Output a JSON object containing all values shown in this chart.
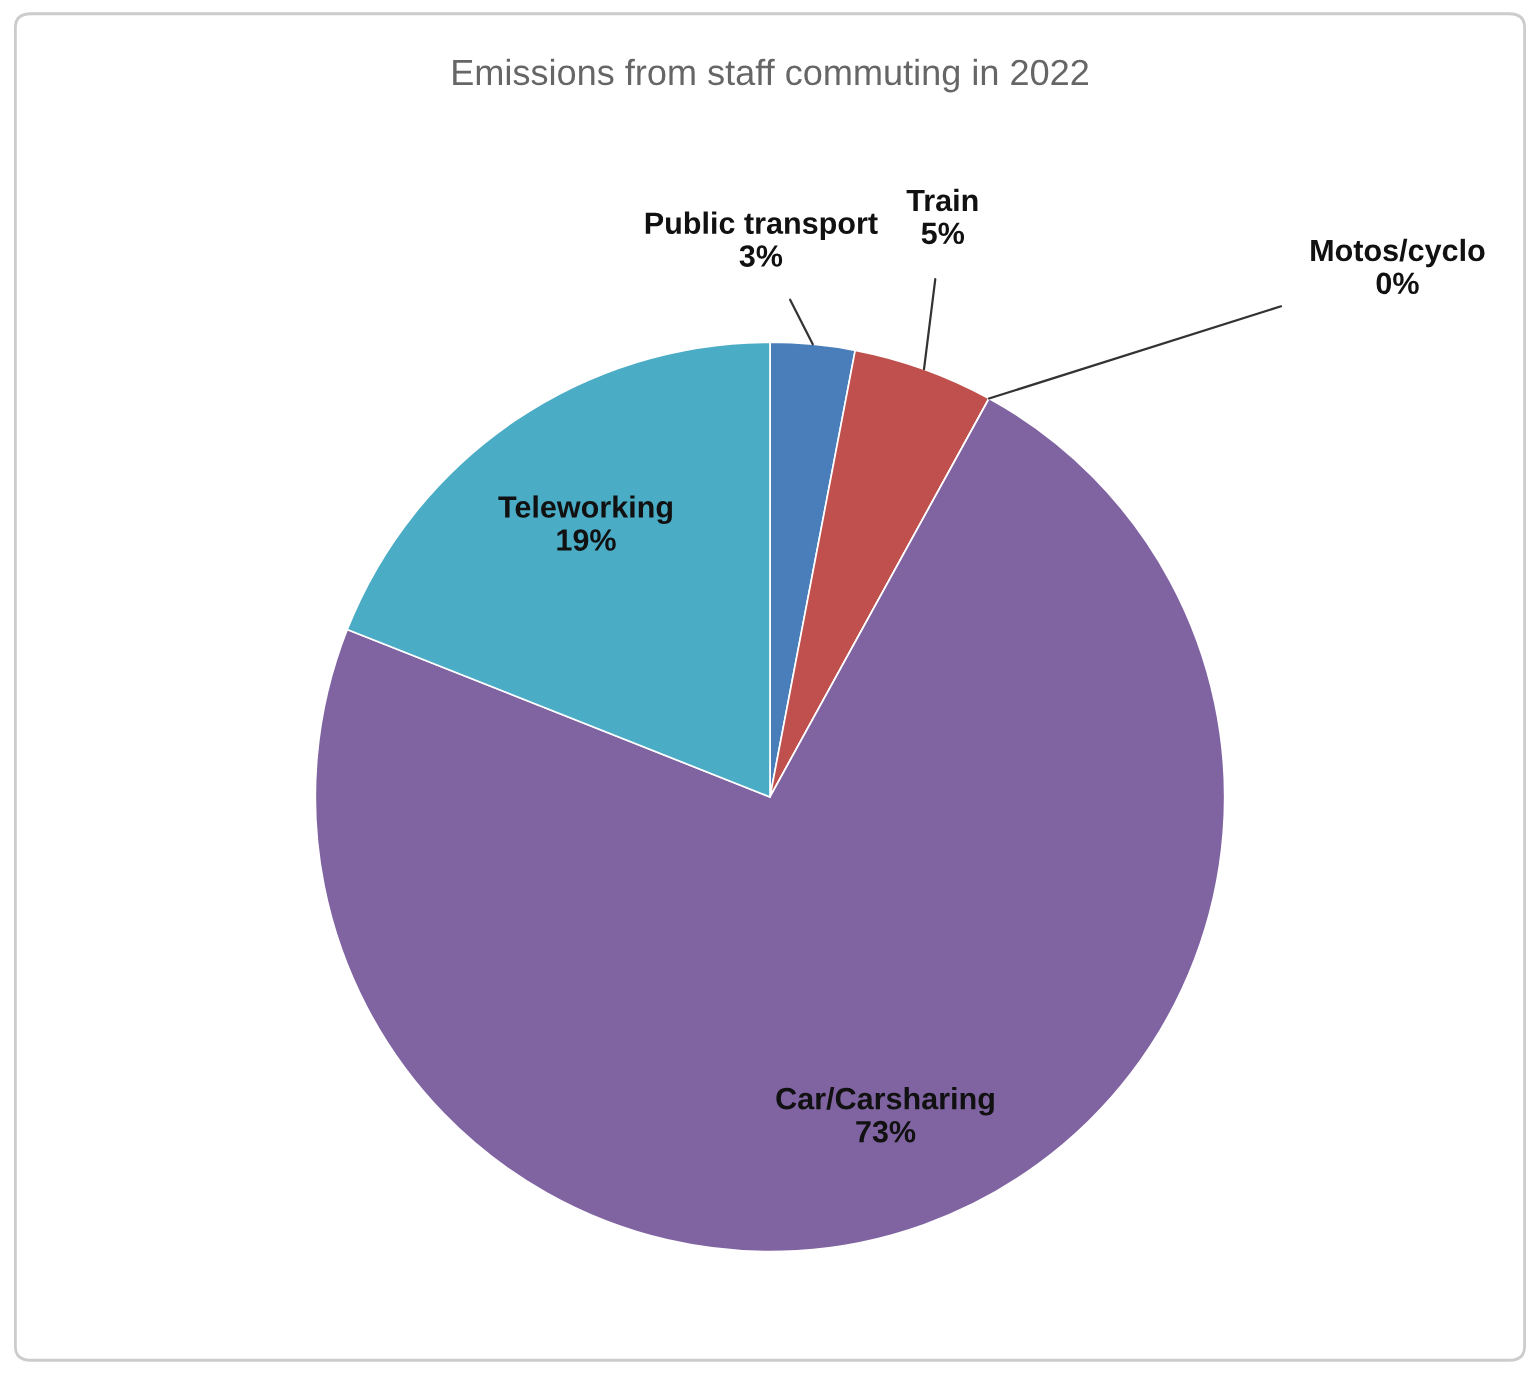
{
  "chart_data": {
    "type": "pie",
    "title": "Emissions from staff commuting in 2022",
    "categories": [
      "Public transport",
      "Train",
      "Motos/cyclo",
      "Car/Carsharing",
      "Teleworking"
    ],
    "values": [
      3,
      5,
      0,
      73,
      19
    ],
    "value_labels": [
      "3%",
      "5%",
      "0%",
      "73%",
      "19%"
    ],
    "colors": [
      "#4a7ebb",
      "#c0504d",
      "#b5a95a",
      "#8064a2",
      "#4bacc6"
    ],
    "legend": false
  }
}
